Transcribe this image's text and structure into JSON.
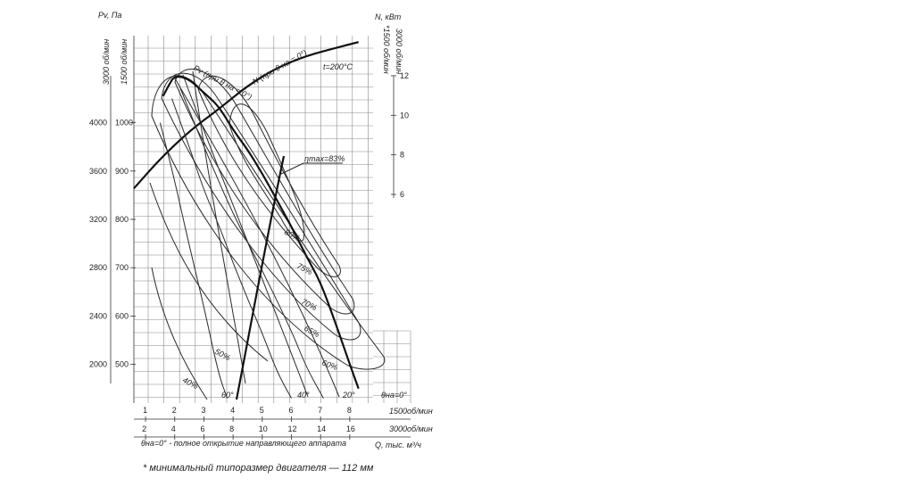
{
  "chart_data": {
    "type": "line",
    "title": "",
    "condition": "t=200°C",
    "left_axis": {
      "label": "Pv, Па",
      "speed_labels": [
        "3000 об/мин",
        "1500 об/мин"
      ],
      "ticks_3000": [
        "4000",
        "3600",
        "3200",
        "2800",
        "2400",
        "2000"
      ],
      "ticks_1500": [
        "1000",
        "900",
        "800",
        "700",
        "600",
        "500"
      ],
      "range_1500": [
        420,
        1180
      ]
    },
    "right_axis": {
      "label": "N, кВт",
      "speed_labels": [
        "*1500 об/мин",
        "3000 об/мин"
      ],
      "ticks": [
        "12",
        "10",
        "8",
        "6"
      ],
      "range": [
        6,
        13.8
      ]
    },
    "x_axis": {
      "label": "Q, тыс. м³/ч",
      "ticks_1500": [
        "1",
        "2",
        "3",
        "4",
        "5",
        "6",
        "7",
        "8"
      ],
      "unit_1500": "1500об/мин",
      "ticks_3000": [
        "2",
        "4",
        "6",
        "8",
        "10",
        "12",
        "14",
        "16"
      ],
      "unit_3000": "3000об/мин",
      "range_1500": [
        0.6,
        8.8
      ]
    },
    "pv_curve_label": "Pv (при θ на = 0°)",
    "power_curve_label": "N (при θ на = 0°)",
    "efficiency_max_label": "ηmax=83%",
    "efficiency_labels": [
      "80%",
      "75%",
      "70%",
      "65%",
      "60%",
      "50%",
      "40%"
    ],
    "guide_vane_angle_labels": [
      "60°",
      "40°",
      "20°",
      "θна=0°"
    ],
    "series": [
      {
        "name": "Pv (при θ на = 0°)",
        "x": [
          1.6,
          1.8,
          2.0,
          2.5,
          3.0,
          3.5,
          4.0,
          4.5,
          5.0,
          5.5,
          6.0,
          6.5,
          7.0,
          7.5,
          8.0,
          8.3
        ],
        "y": [
          1055,
          1078,
          1098,
          1090,
          1062,
          1035,
          985,
          944,
          895,
          840,
          785,
          725,
          670,
          588,
          500,
          450
        ]
      },
      {
        "name": "N (при θ на = 0°)",
        "x": [
          0.6,
          1.5,
          2.5,
          3.5,
          4.5,
          5.5,
          6.5,
          7.5,
          8.3
        ],
        "y": [
          6.3,
          7.8,
          9.2,
          10.3,
          11.5,
          12.4,
          13.0,
          13.4,
          13.7
        ]
      },
      {
        "name": "60°",
        "x": [
          1.5,
          2.0,
          2.5,
          3.0,
          3.5,
          3.8
        ],
        "y": [
          1000,
          880,
          745,
          620,
          480,
          430
        ]
      },
      {
        "name": "40°",
        "x": [
          1.9,
          2.5,
          3.0,
          3.5,
          4.0,
          4.5,
          5.0,
          5.5,
          6.0
        ],
        "y": [
          1050,
          950,
          860,
          790,
          710,
          635,
          565,
          485,
          430
        ]
      },
      {
        "name": "20°",
        "x": [
          2.2,
          3.0,
          4.0,
          5.0,
          6.0,
          6.5,
          7.1
        ],
        "y": [
          1070,
          950,
          810,
          695,
          570,
          495,
          430
        ]
      }
    ]
  },
  "footnote_theta": "θна=0° - полное открытие направляющего аппарата",
  "footnote_motor": "* минимальный типоразмер двигателя — 112 мм"
}
